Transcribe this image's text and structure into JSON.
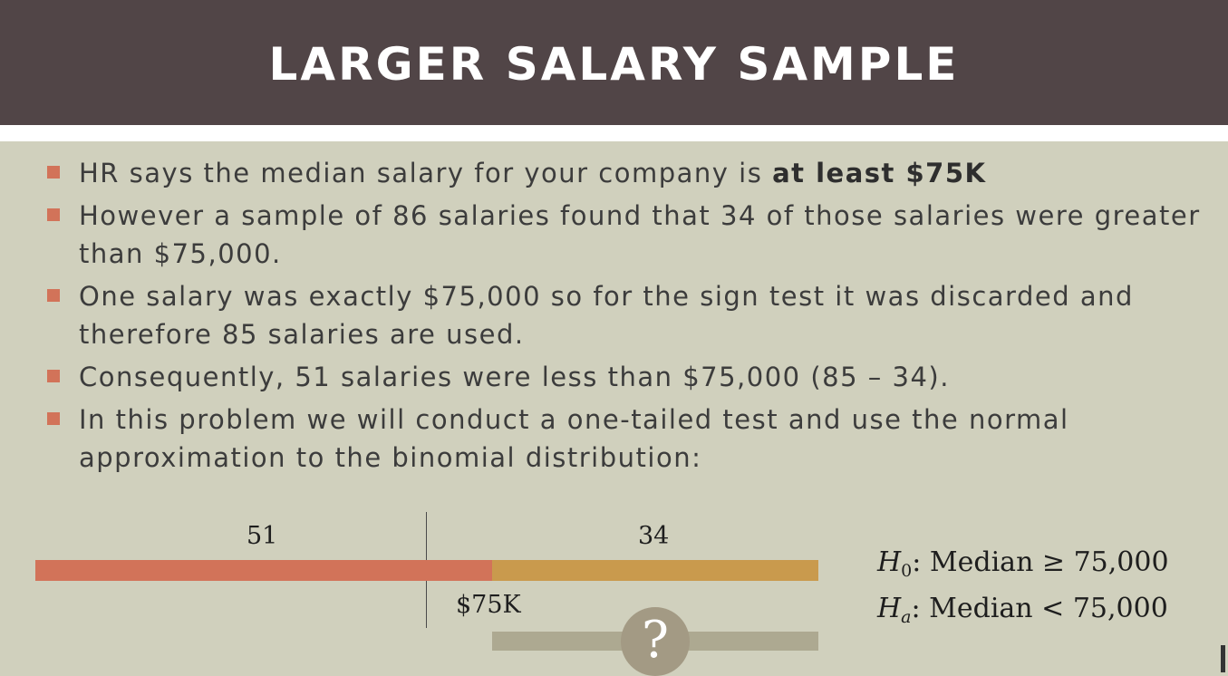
{
  "slide": {
    "title": "LARGER SALARY SAMPLE"
  },
  "bullets": [
    {
      "pre": "HR says the median salary for your company is ",
      "bold": "at least $75K"
    },
    {
      "text": "However a sample of 86 salaries found that 34 of those salaries were greater than $75,000."
    },
    {
      "text": "One salary was exactly $75,000 so for the sign test it was discarded and therefore 85 salaries are used."
    },
    {
      "text": "Consequently, 51 salaries were less than $75,000 (85 – 34)."
    },
    {
      "text": "In this problem we will conduct a one-tailed test and use the normal approximation to the binomial distribution:"
    }
  ],
  "diagram": {
    "left_count": "51",
    "right_count": "34",
    "threshold_label": "$75K",
    "question_mark": "?",
    "colors": {
      "less": "#d27359",
      "greater": "#c99a4d",
      "track": "#ada991"
    }
  },
  "hypotheses": {
    "null": {
      "symbol": "H",
      "subscript": "0",
      "text": ": Median ≥ 75,000"
    },
    "alt": {
      "symbol": "H",
      "subscript": "a",
      "text": ": Median < 75,000"
    }
  },
  "colors": {
    "header_bg": "#514547",
    "body_bg": "#d0d0bd",
    "bullet": "#d27359"
  }
}
